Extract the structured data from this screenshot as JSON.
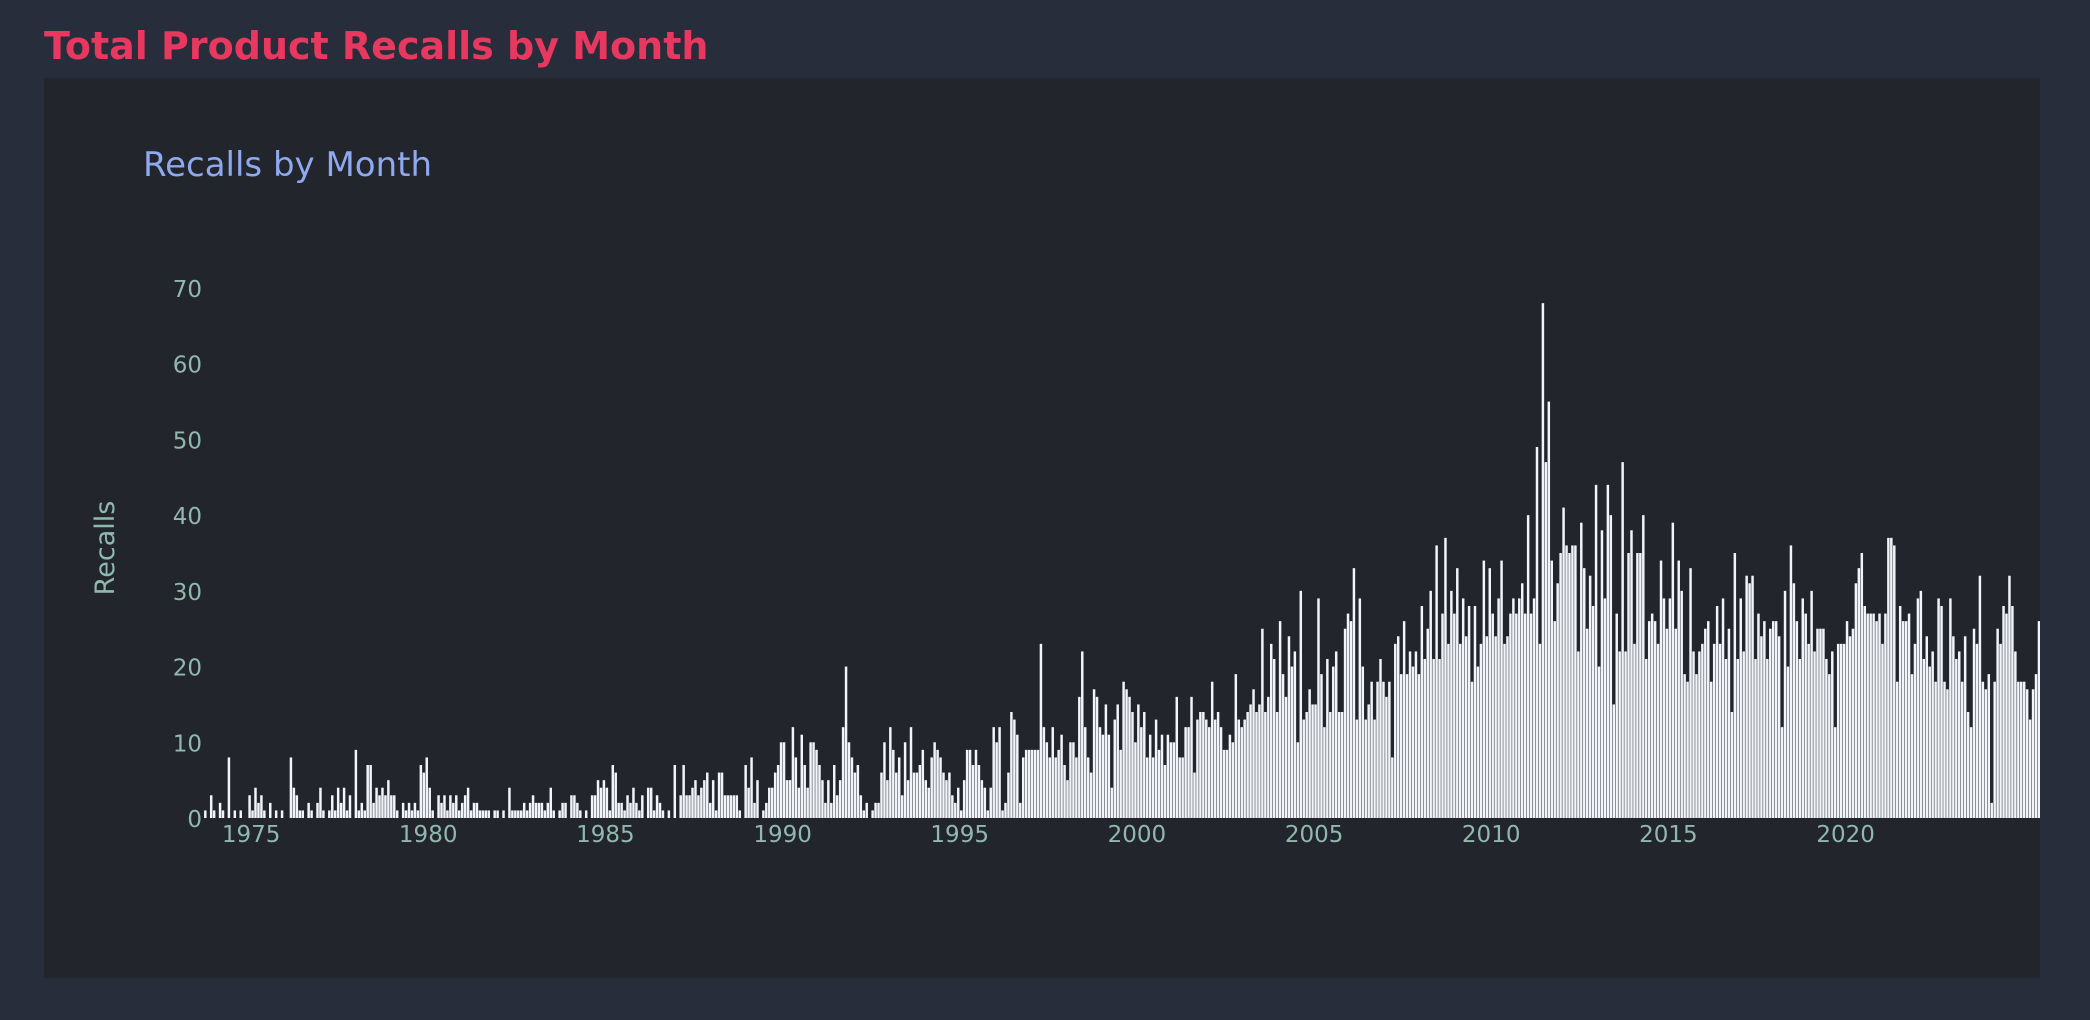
{
  "page": {
    "title": "Total Product Recalls by Month"
  },
  "colors": {
    "title": "#e8385f",
    "chart_title": "#8fa9ee",
    "axis_text": "#8fb9ad",
    "bar": "#f1f4f8",
    "background": "#272d3a",
    "panel": "#22252c"
  },
  "chart_data": {
    "type": "bar",
    "title": "Recalls by Month",
    "xlabel": "",
    "ylabel": "Recalls",
    "grid": false,
    "legend": "none",
    "ylim": [
      0,
      70
    ],
    "xlim": [
      1973.7,
      2021.0
    ],
    "yticks": [
      0,
      10,
      20,
      30,
      40,
      50,
      60,
      70
    ],
    "xticks": [
      1975,
      1980,
      1985,
      1990,
      1995,
      2000,
      2005,
      2010,
      2015,
      2020
    ],
    "start_year": 1973,
    "start_month": 9,
    "series": [
      {
        "values": [
          1,
          0,
          3,
          1,
          0,
          2,
          1,
          0,
          8,
          0,
          1,
          0,
          1,
          0,
          0,
          3,
          1,
          4,
          2,
          3,
          1,
          0,
          2,
          0,
          1,
          0,
          1,
          0,
          0,
          8,
          4,
          3,
          1,
          1,
          0,
          2,
          1,
          0,
          2,
          4,
          1,
          0,
          1,
          3,
          1,
          4,
          2,
          4,
          1,
          3,
          0,
          9,
          1,
          2,
          1,
          7,
          7,
          2,
          4,
          3,
          4,
          3,
          5,
          3,
          3,
          1,
          0,
          2,
          1,
          2,
          1,
          2,
          1,
          7,
          6,
          8,
          4,
          1,
          0,
          3,
          2,
          3,
          1,
          3,
          2,
          3,
          1,
          2,
          3,
          4,
          1,
          2,
          2,
          1,
          1,
          1,
          1,
          0,
          1,
          1,
          0,
          1,
          0,
          4,
          1,
          1,
          1,
          1,
          2,
          1,
          2,
          3,
          2,
          2,
          2,
          1,
          2,
          4,
          1,
          0,
          1,
          2,
          2,
          0,
          3,
          3,
          2,
          1,
          0,
          1,
          0,
          3,
          3,
          5,
          4,
          5,
          4,
          1,
          7,
          6,
          2,
          2,
          1,
          3,
          2,
          4,
          2,
          1,
          3,
          0,
          4,
          4,
          1,
          3,
          2,
          1,
          0,
          1,
          0,
          7,
          0,
          3,
          7,
          3,
          3,
          4,
          5,
          3,
          4,
          5,
          6,
          2,
          5,
          1,
          6,
          6,
          3,
          3,
          3,
          3,
          3,
          1,
          0,
          7,
          4,
          8,
          2,
          5,
          0,
          1,
          2,
          4,
          4,
          6,
          7,
          10,
          10,
          5,
          5,
          12,
          8,
          4,
          11,
          7,
          4,
          10,
          10,
          9,
          7,
          5,
          2,
          5,
          2,
          7,
          3,
          5,
          12,
          20,
          10,
          8,
          6,
          7,
          3,
          1,
          2,
          0,
          1,
          2,
          2,
          6,
          10,
          5,
          12,
          9,
          6,
          8,
          3,
          10,
          5,
          12,
          6,
          6,
          7,
          9,
          5,
          4,
          8,
          10,
          9,
          8,
          6,
          5,
          6,
          3,
          2,
          4,
          1,
          5,
          9,
          9,
          7,
          9,
          7,
          5,
          4,
          1,
          4,
          12,
          10,
          12,
          1,
          2,
          6,
          14,
          13,
          11,
          2,
          8,
          9,
          9,
          9,
          9,
          9,
          23,
          12,
          10,
          8,
          12,
          8,
          9,
          11,
          7,
          5,
          10,
          10,
          8,
          16,
          22,
          12,
          8,
          6,
          17,
          16,
          12,
          11,
          15,
          11,
          4,
          13,
          15,
          9,
          18,
          17,
          16,
          14,
          10,
          15,
          12,
          14,
          8,
          11,
          8,
          13,
          9,
          11,
          7,
          11,
          10,
          10,
          16,
          8,
          8,
          12,
          12,
          16,
          6,
          13,
          14,
          14,
          13,
          12,
          18,
          13,
          14,
          12,
          9,
          9,
          11,
          10,
          19,
          13,
          12,
          13,
          14,
          15,
          17,
          14,
          15,
          25,
          14,
          16,
          23,
          21,
          14,
          26,
          19,
          16,
          24,
          20,
          22,
          10,
          30,
          13,
          14,
          17,
          15,
          15,
          29,
          19,
          12,
          21,
          14,
          20,
          22,
          14,
          14,
          25,
          27,
          26,
          33,
          13,
          29,
          20,
          13,
          15,
          18,
          13,
          18,
          21,
          18,
          16,
          18,
          8,
          23,
          24,
          19,
          26,
          19,
          22,
          20,
          22,
          19,
          28,
          21,
          25,
          30,
          21,
          36,
          21,
          27,
          37,
          23,
          30,
          27,
          33,
          23,
          29,
          24,
          28,
          18,
          28,
          20,
          23,
          34,
          24,
          33,
          27,
          24,
          29,
          34,
          23,
          24,
          27,
          29,
          27,
          29,
          31,
          27,
          40,
          27,
          29,
          49,
          23,
          68,
          47,
          55,
          34,
          26,
          31,
          35,
          41,
          36,
          35,
          36,
          36,
          22,
          39,
          33,
          25,
          32,
          28,
          44,
          20,
          38,
          29,
          44,
          40,
          15,
          27,
          22,
          47,
          22,
          35,
          38,
          23,
          35,
          35,
          40,
          21,
          26,
          27,
          26,
          23,
          34,
          29,
          25,
          29,
          39,
          25,
          34,
          30,
          19,
          18,
          33,
          22,
          19,
          22,
          23,
          25,
          26,
          18,
          23,
          28,
          23,
          29,
          21,
          25,
          14,
          35,
          21,
          29,
          22,
          32,
          31,
          32,
          21,
          27,
          24,
          26,
          21,
          25,
          26,
          26,
          24,
          12,
          30,
          20,
          36,
          31,
          26,
          21,
          29,
          27,
          23,
          30,
          22,
          25,
          25,
          25,
          21,
          19,
          22,
          12,
          23,
          23,
          23,
          26,
          24,
          25,
          31,
          33,
          35,
          28,
          27,
          27,
          27,
          26,
          27,
          23,
          27,
          37,
          37,
          36,
          18,
          28,
          26,
          26,
          27,
          19,
          23,
          29,
          30,
          21,
          24,
          20,
          22,
          18,
          29,
          28,
          18,
          17,
          29,
          24,
          21,
          22,
          18,
          24,
          14,
          12,
          25,
          23,
          32,
          18,
          17,
          19,
          2,
          18,
          25,
          23,
          28,
          27,
          32,
          28,
          22,
          18,
          18,
          18,
          17,
          13,
          17,
          19,
          26,
          24,
          16,
          28,
          18
        ]
      }
    ]
  }
}
